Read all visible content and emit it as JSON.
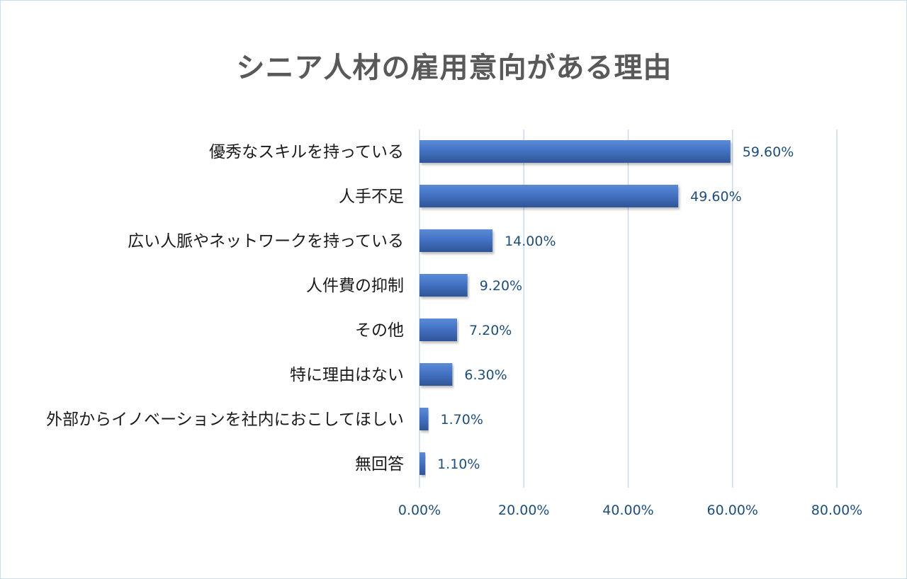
{
  "chart_data": {
    "type": "bar",
    "orientation": "horizontal",
    "title": "シニア人材の雇用意向がある理由",
    "categories": [
      "優秀なスキルを持っている",
      "人手不足",
      "広い人脈やネットワークを持っている",
      "人件費の抑制",
      "その他",
      "特に理由はない",
      "外部からイノベーションを社内におこしてほしい",
      "無回答"
    ],
    "values": [
      59.6,
      49.6,
      14.0,
      9.2,
      7.2,
      6.3,
      1.7,
      1.1
    ],
    "value_labels": [
      "59.60%",
      "49.60%",
      "14.00%",
      "9.20%",
      "7.20%",
      "6.30%",
      "1.70%",
      "1.10%"
    ],
    "xlim": [
      0,
      80
    ],
    "x_ticks": [
      0,
      20,
      40,
      60,
      80
    ],
    "x_tick_labels": [
      "0.00%",
      "20.00%",
      "40.00%",
      "60.00%",
      "80.00%"
    ],
    "grid": "vertical",
    "legend": "none",
    "colors": {
      "bar": "#4472c4",
      "bar_dark": "#2f5597",
      "grid": "#c9dbee",
      "title": "#595959",
      "value_text": "#1f4e79"
    }
  }
}
